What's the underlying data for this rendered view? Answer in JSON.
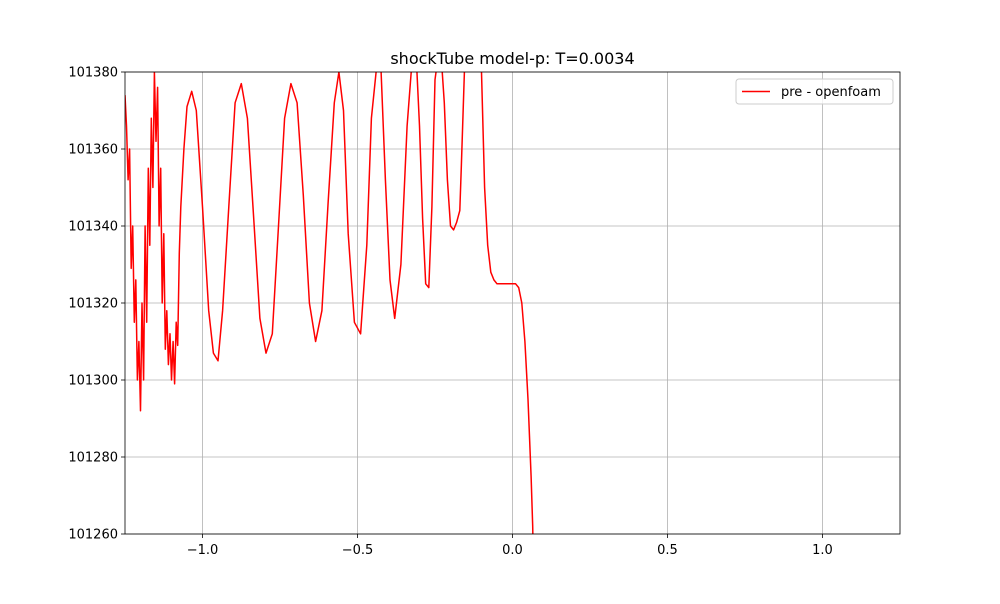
{
  "chart_data": {
    "type": "line",
    "title": "shockTube model-p: T=0.0034",
    "xlabel": "",
    "ylabel": "",
    "xlim": [
      -1.25,
      1.25
    ],
    "ylim": [
      101260,
      101380
    ],
    "xticks": [
      -1.0,
      -0.5,
      0.0,
      0.5,
      1.0
    ],
    "xtick_labels": [
      "−1.0",
      "−0.5",
      "0.0",
      "0.5",
      "1.0"
    ],
    "yticks": [
      101260,
      101280,
      101300,
      101320,
      101340,
      101360,
      101380
    ],
    "ytick_labels": [
      "101260",
      "101280",
      "101300",
      "101320",
      "101340",
      "101360",
      "101380"
    ],
    "grid": true,
    "legend_position": "top-right",
    "series": [
      {
        "name": "pre - openfoam",
        "color": "#ff0000",
        "x": [
          -1.25,
          -1.245,
          -1.24,
          -1.235,
          -1.23,
          -1.225,
          -1.22,
          -1.215,
          -1.21,
          -1.205,
          -1.2,
          -1.195,
          -1.19,
          -1.185,
          -1.18,
          -1.175,
          -1.17,
          -1.165,
          -1.16,
          -1.155,
          -1.15,
          -1.145,
          -1.14,
          -1.135,
          -1.13,
          -1.125,
          -1.12,
          -1.115,
          -1.11,
          -1.105,
          -1.1,
          -1.095,
          -1.09,
          -1.085,
          -1.08,
          -1.075,
          -1.07,
          -1.06,
          -1.05,
          -1.035,
          -1.02,
          -1.0,
          -0.98,
          -0.965,
          -0.95,
          -0.935,
          -0.915,
          -0.895,
          -0.875,
          -0.855,
          -0.835,
          -0.815,
          -0.795,
          -0.775,
          -0.755,
          -0.735,
          -0.715,
          -0.695,
          -0.675,
          -0.655,
          -0.635,
          -0.615,
          -0.595,
          -0.575,
          -0.56,
          -0.545,
          -0.53,
          -0.51,
          -0.49,
          -0.47,
          -0.455,
          -0.44,
          -0.425,
          -0.41,
          -0.395,
          -0.38,
          -0.36,
          -0.34,
          -0.325,
          -0.31,
          -0.3,
          -0.29,
          -0.28,
          -0.27,
          -0.26,
          -0.25,
          -0.24,
          -0.23,
          -0.22,
          -0.21,
          -0.2,
          -0.19,
          -0.18,
          -0.17,
          -0.165,
          -0.155,
          -0.15,
          -0.14,
          -0.13,
          -0.12,
          -0.11,
          -0.1,
          -0.09,
          -0.08,
          -0.07,
          -0.06,
          -0.05,
          -0.045,
          -0.04,
          -0.035,
          -0.03,
          -0.02,
          -0.01,
          0.0,
          0.01,
          0.02,
          0.03,
          0.04,
          0.05,
          0.06,
          0.065,
          0.07
        ],
        "y": [
          101374,
          101366,
          101352,
          101360,
          101329,
          101340,
          101315,
          101326,
          101300,
          101310,
          101292,
          101320,
          101300,
          101340,
          101315,
          101355,
          101335,
          101368,
          101350,
          101380,
          101362,
          101376,
          101340,
          101355,
          101320,
          101338,
          101308,
          101318,
          101304,
          101312,
          101300,
          101310,
          101299,
          101315,
          101309,
          101333,
          101345,
          101360,
          101371,
          101375,
          101370,
          101345,
          101318,
          101307,
          101305,
          101318,
          101345,
          101372,
          101377,
          101368,
          101342,
          101316,
          101307,
          101312,
          101340,
          101368,
          101377,
          101372,
          101348,
          101320,
          101310,
          101318,
          101346,
          101372,
          101380,
          101370,
          101338,
          101315,
          101312,
          101335,
          101368,
          101380,
          101382,
          101352,
          101326,
          101316,
          101330,
          101366,
          101382,
          101383,
          101366,
          101342,
          101325,
          101324,
          101345,
          101378,
          101384,
          101384,
          101372,
          101352,
          101340,
          101339,
          101341,
          101344,
          101356,
          101380,
          101384,
          101384,
          101382,
          101382,
          101384,
          101380,
          101350,
          101335,
          101328,
          101326,
          101325,
          101325,
          101325,
          101325,
          101325,
          101325,
          101325,
          101325,
          101325,
          101324,
          101320,
          101310,
          101295,
          101275,
          101262,
          101240
        ]
      }
    ]
  }
}
